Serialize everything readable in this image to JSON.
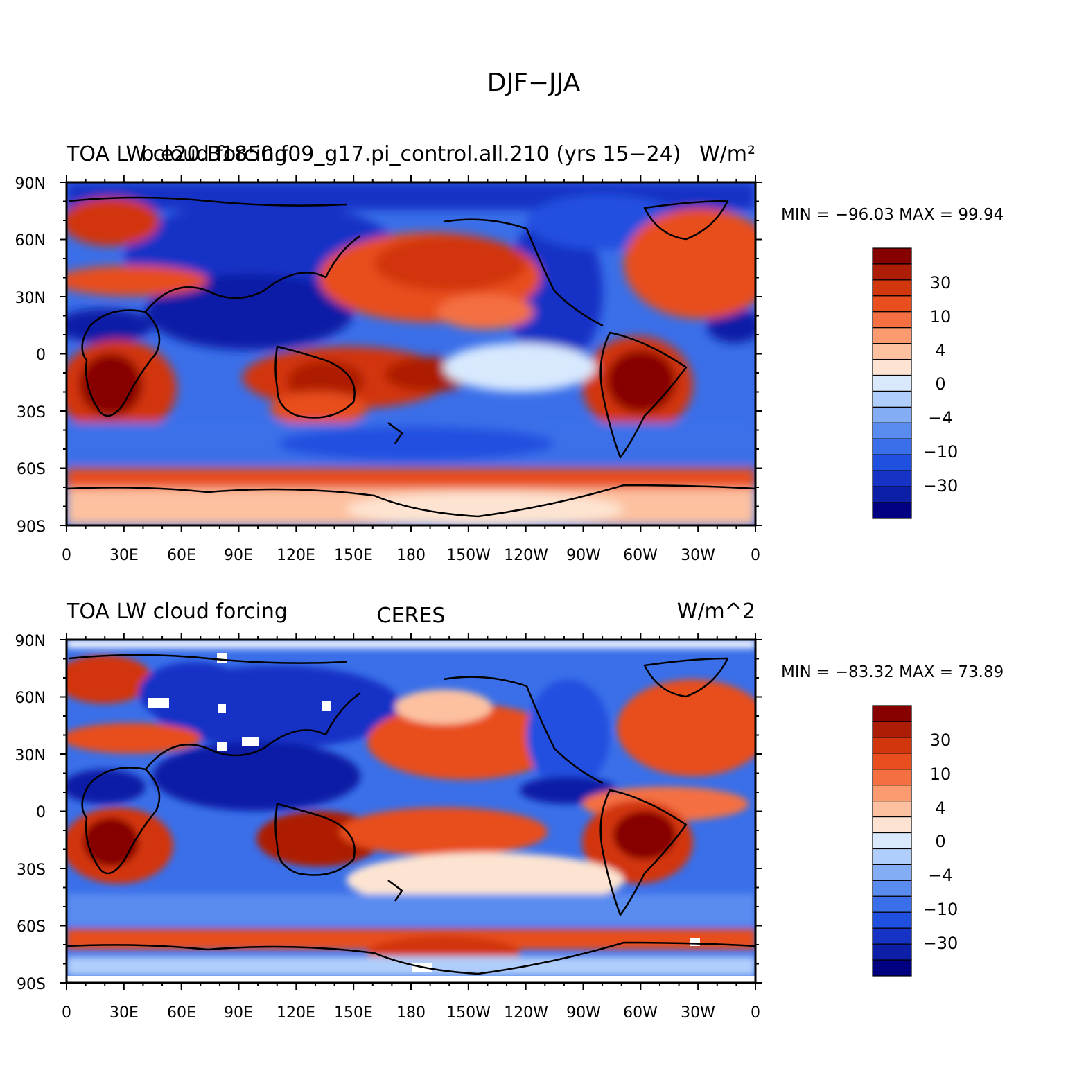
{
  "figure": {
    "title": "DJF−JJA"
  },
  "colorbar": {
    "tick_labels": [
      "30",
      "10",
      "4",
      "0",
      "−4",
      "−10",
      "−30"
    ],
    "colors": [
      "#000080",
      "#0d1fa6",
      "#1733c6",
      "#2050e0",
      "#3a6fe9",
      "#5a8cf0",
      "#83aef6",
      "#b0cefb",
      "#d8e9fe",
      "#fde4d2",
      "#fdc1a0",
      "#fb9b6f",
      "#f47042",
      "#e84e1e",
      "#d2360d",
      "#ad1d05",
      "#870000"
    ]
  },
  "x_ticks": [
    "0",
    "30E",
    "60E",
    "90E",
    "120E",
    "150E",
    "180",
    "150W",
    "120W",
    "90W",
    "60W",
    "30W",
    "0"
  ],
  "y_ticks": [
    "90N",
    "60N",
    "30N",
    "0",
    "30S",
    "60S",
    "90S"
  ],
  "panels": [
    {
      "left_title": "TOA LW cloud forcing",
      "center_title": "b.e20.B1850.f09_g17.pi_control.all.210 (yrs 15−24)",
      "units": "W/m²",
      "min_max": "MIN = −96.03 MAX =  99.94"
    },
    {
      "left_title": "TOA LW cloud forcing",
      "center_title": "CERES",
      "units": "W/m^2",
      "min_max": "MIN = −83.32 MAX =  73.89"
    }
  ],
  "chart_data": {
    "type": "heatmap",
    "title": "DJF−JJA",
    "field": "TOA LW cloud forcing difference (DJF minus JJA)",
    "units": "W/m^2",
    "contour_levels": [
      -40,
      -30,
      -20,
      -15,
      -10,
      -6,
      -4,
      -2,
      -1,
      0,
      1,
      2,
      4,
      6,
      10,
      15,
      20,
      30,
      40
    ],
    "x_range_deg_east": [
      0,
      360
    ],
    "y_range_deg": [
      -90,
      90
    ],
    "panels": [
      {
        "name": "b.e20.B1850.f09_g17.pi_control.all.210 (yrs 15−24)",
        "min": -96.03,
        "max": 99.94
      },
      {
        "name": "CERES",
        "min": -83.32,
        "max": 73.89
      }
    ]
  }
}
